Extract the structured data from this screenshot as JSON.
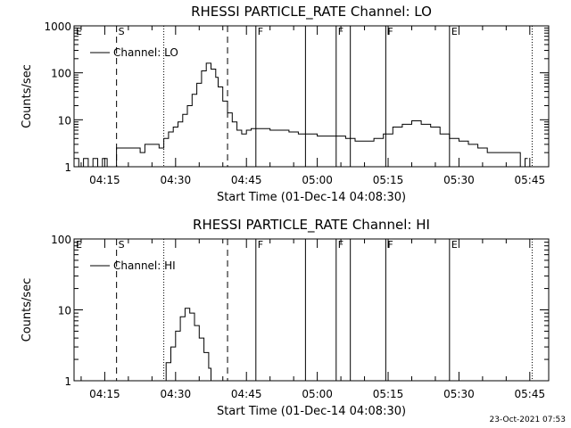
{
  "footer_stamp": "23-Oct-2021 07:53",
  "chart_data": [
    {
      "type": "line",
      "title": "RHESSI PARTICLE_RATE Channel: LO",
      "xlabel": "Start Time (01-Dec-14 04:08:30)",
      "ylabel": "Counts/sec",
      "yscale": "log",
      "xlim": [
        "04:08:30",
        "05:49:00"
      ],
      "ylim": [
        1,
        1000
      ],
      "xticks": [
        "04:15",
        "04:30",
        "04:45",
        "05:00",
        "05:15",
        "05:30",
        "05:45"
      ],
      "yticks": [
        "1",
        "10",
        "100",
        "1000"
      ],
      "legend": "Channel: LO",
      "legend_position": "top-left",
      "series": [
        {
          "name": "Channel: LO",
          "x": [
            "04:08:30",
            "04:09:30",
            "04:10:30",
            "04:11:30",
            "04:12:30",
            "04:13:30",
            "04:14:30",
            "04:15:30",
            "04:16:30",
            "04:17:30",
            "04:18:30",
            "04:19:30",
            "04:20:30",
            "04:21:30",
            "04:22:30",
            "04:23:30",
            "04:24:30",
            "04:25:30",
            "04:26:30",
            "04:27:30",
            "04:28:30",
            "04:29:30",
            "04:30:30",
            "04:31:30",
            "04:32:30",
            "04:33:30",
            "04:34:30",
            "04:35:30",
            "04:36:30",
            "04:37:30",
            "04:38:30",
            "04:39:00",
            "04:40:00",
            "04:41:00",
            "04:42:00",
            "04:43:00",
            "04:44:00",
            "04:45:00",
            "04:46:00",
            "04:48:00",
            "04:50:00",
            "04:52:00",
            "04:54:00",
            "04:56:00",
            "04:58:00",
            "05:00:00",
            "05:02:00",
            "05:04:00",
            "05:06:00",
            "05:08:00",
            "05:10:00",
            "05:12:00",
            "05:14:00",
            "05:16:00",
            "05:18:00",
            "05:20:00",
            "05:22:00",
            "05:24:00",
            "05:26:00",
            "05:28:00",
            "05:30:00",
            "05:32:00",
            "05:34:00",
            "05:36:00",
            "05:38:00",
            "05:40:00",
            "05:42:00",
            "05:43:00",
            "05:44:00"
          ],
          "y": [
            1.5,
            1,
            1.5,
            1,
            1.5,
            1,
            1.5,
            1,
            1,
            2.5,
            2.5,
            2.5,
            2.5,
            2.5,
            2,
            3,
            3,
            3,
            2.5,
            4,
            5.5,
            7,
            9,
            13,
            20,
            35,
            60,
            110,
            160,
            120,
            80,
            50,
            25,
            14,
            9,
            6,
            5,
            6,
            6.5,
            6.5,
            6,
            6,
            5.5,
            5,
            5,
            4.5,
            4.5,
            4.5,
            4,
            3.5,
            3.5,
            4,
            5,
            7,
            8,
            9.5,
            8,
            7,
            5,
            4,
            3.5,
            3,
            2.5,
            2,
            2,
            2,
            2,
            1,
            1.5
          ]
        }
      ],
      "markers": [
        {
          "label": "S",
          "time": "04:17:30",
          "style": "dashed"
        },
        {
          "label": "",
          "time": "04:41:00",
          "style": "dashed"
        },
        {
          "label": "",
          "time": "04:27:30",
          "style": "dotted"
        },
        {
          "label": "",
          "time": "05:45:30",
          "style": "dotted"
        },
        {
          "label": "F",
          "time": "04:47:00",
          "style": "solid"
        },
        {
          "label": "",
          "time": "04:57:30",
          "style": "solid"
        },
        {
          "label": "F",
          "time": "05:04:00",
          "style": "solid"
        },
        {
          "label": "",
          "time": "05:07:00",
          "style": "solid"
        },
        {
          "label": "F",
          "time": "05:14:30",
          "style": "solid"
        },
        {
          "label": "E",
          "time": "05:28:00",
          "style": "solid"
        },
        {
          "label": "E",
          "time": "04:08:30",
          "style": "none"
        }
      ]
    },
    {
      "type": "line",
      "title": "RHESSI PARTICLE_RATE Channel: HI",
      "xlabel": "Start Time (01-Dec-14 04:08:30)",
      "ylabel": "Counts/sec",
      "yscale": "log",
      "xlim": [
        "04:08:30",
        "05:49:00"
      ],
      "ylim": [
        1,
        100
      ],
      "xticks": [
        "04:15",
        "04:30",
        "04:45",
        "05:00",
        "05:15",
        "05:30",
        "05:45"
      ],
      "yticks": [
        "1",
        "10",
        "100"
      ],
      "legend": "Channel: HI",
      "legend_position": "top-left",
      "series": [
        {
          "name": "Channel: HI",
          "x": [
            "04:27:30",
            "04:28:00",
            "04:29:00",
            "04:30:00",
            "04:31:00",
            "04:32:00",
            "04:33:00",
            "04:34:00",
            "04:35:00",
            "04:36:00",
            "04:37:00",
            "04:37:30"
          ],
          "y": [
            1,
            1.8,
            3,
            5,
            8,
            10.5,
            9,
            6,
            4,
            2.5,
            1.5,
            1
          ]
        }
      ],
      "markers": [
        {
          "label": "S",
          "time": "04:17:30",
          "style": "dashed"
        },
        {
          "label": "",
          "time": "04:41:00",
          "style": "dashed"
        },
        {
          "label": "",
          "time": "04:27:30",
          "style": "dotted"
        },
        {
          "label": "",
          "time": "05:45:30",
          "style": "dotted"
        },
        {
          "label": "F",
          "time": "04:47:00",
          "style": "solid"
        },
        {
          "label": "",
          "time": "04:57:30",
          "style": "solid"
        },
        {
          "label": "F",
          "time": "05:04:00",
          "style": "solid"
        },
        {
          "label": "",
          "time": "05:07:00",
          "style": "solid"
        },
        {
          "label": "F",
          "time": "05:14:30",
          "style": "solid"
        },
        {
          "label": "E",
          "time": "05:28:00",
          "style": "solid"
        },
        {
          "label": "E",
          "time": "04:08:30",
          "style": "none"
        }
      ]
    }
  ]
}
